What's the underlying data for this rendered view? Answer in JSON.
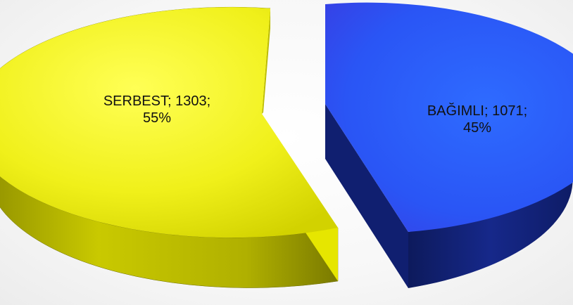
{
  "chart_data": {
    "type": "pie",
    "style": "3d-exploded",
    "title": "",
    "slices": [
      {
        "name": "SERBEST",
        "value": 1303,
        "percent": "55%",
        "label_line1": "SERBEST; 1303;",
        "label_line2": "55%"
      },
      {
        "name": "BAĞIMLI",
        "value": 1071,
        "percent": "45%",
        "label_line1": "BAĞIMLI; 1071;",
        "label_line2": "45%"
      }
    ],
    "legend": "none"
  },
  "colors": {
    "serbest_top": "#f2f21a",
    "serbest_side": "#a8a800",
    "bagimli_top": "#2a55ff",
    "bagimli_side": "#14237a"
  }
}
